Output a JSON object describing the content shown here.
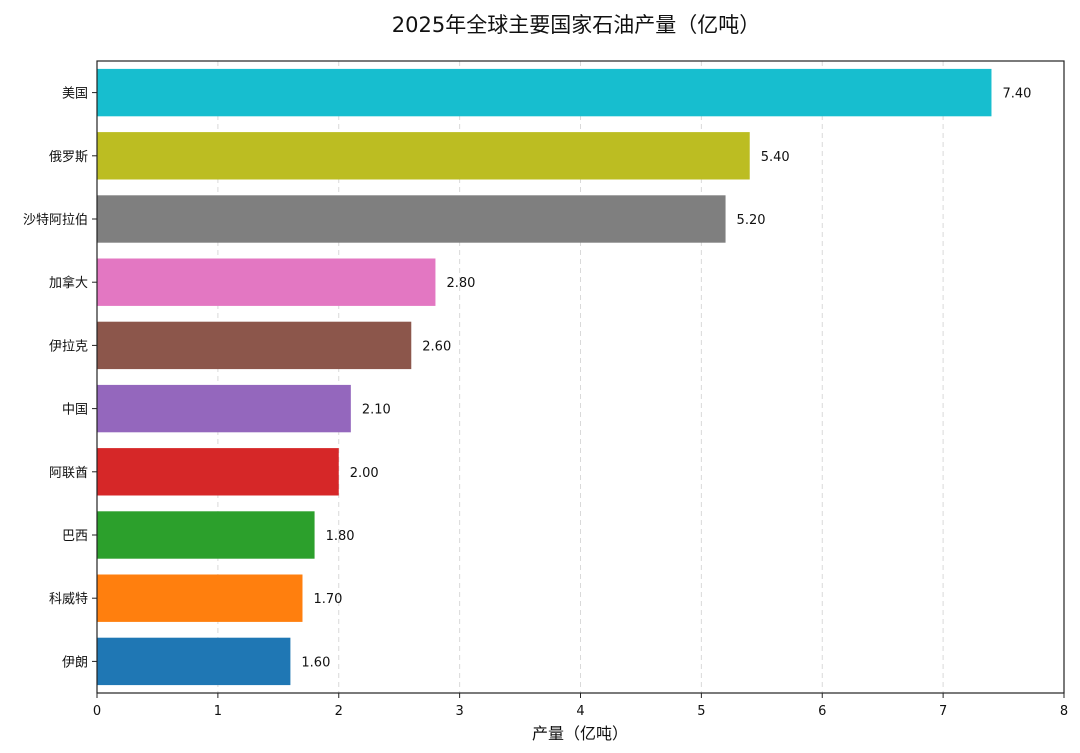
{
  "chart_data": {
    "type": "bar",
    "orientation": "horizontal",
    "title": "2025年全球主要国家石油产量（亿吨）",
    "xlabel": "产量（亿吨）",
    "ylabel": "",
    "xlim": [
      0,
      8
    ],
    "xticks": [
      0,
      1,
      2,
      3,
      4,
      5,
      6,
      7,
      8
    ],
    "grid": "x-dashed",
    "categories": [
      "伊朗",
      "科威特",
      "巴西",
      "阿联酋",
      "中国",
      "伊拉克",
      "加拿大",
      "沙特阿拉伯",
      "俄罗斯",
      "美国"
    ],
    "values": [
      1.6,
      1.7,
      1.8,
      2.0,
      2.1,
      2.6,
      2.8,
      5.2,
      5.4,
      7.4
    ],
    "value_labels": [
      "1.60",
      "1.70",
      "1.80",
      "2.00",
      "2.10",
      "2.60",
      "2.80",
      "5.20",
      "5.40",
      "7.40"
    ],
    "colors": [
      "#1f77b4",
      "#ff7f0e",
      "#2ca02c",
      "#d62728",
      "#9467bd",
      "#8c564b",
      "#e377c2",
      "#7f7f7f",
      "#bcbd22",
      "#17becf"
    ]
  }
}
